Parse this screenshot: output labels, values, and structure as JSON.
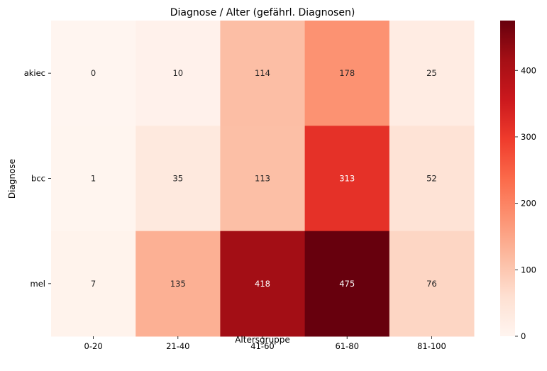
{
  "chart_data": {
    "type": "heatmap",
    "title": "Diagnose / Alter (gefährl. Diagnosen)",
    "xlabel": "Altersgruppe",
    "ylabel": "Diagnose",
    "x_categories": [
      "0-20",
      "21-40",
      "41-60",
      "61-80",
      "81-100"
    ],
    "y_categories": [
      "akiec",
      "bcc",
      "mel"
    ],
    "values": [
      [
        0,
        10,
        114,
        178,
        25
      ],
      [
        1,
        35,
        113,
        313,
        52
      ],
      [
        7,
        135,
        418,
        475,
        76
      ]
    ],
    "colormap": "Reds",
    "vmin": 0,
    "vmax": 475,
    "colorbar_ticks": [
      0,
      100,
      200,
      300,
      400
    ]
  }
}
